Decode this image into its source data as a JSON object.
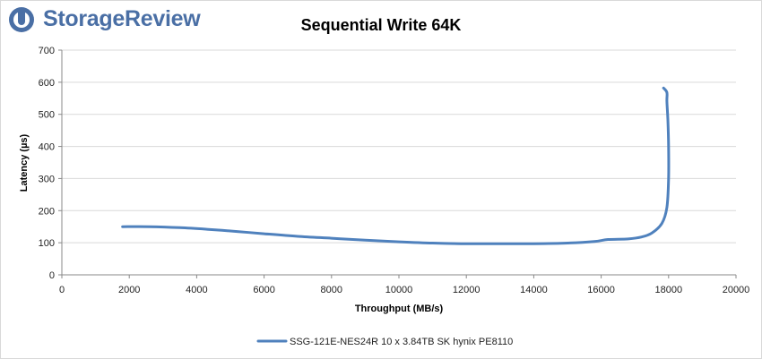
{
  "brand": {
    "name": "StorageReview",
    "color": "#4a6fa5"
  },
  "chart_data": {
    "type": "line",
    "title": "Sequential Write 64K",
    "xlabel": "Throughput (MB/s)",
    "ylabel": "Latency (µs)",
    "xlim": [
      0,
      20000
    ],
    "ylim": [
      0,
      700
    ],
    "xticks": [
      0,
      2000,
      4000,
      6000,
      8000,
      10000,
      12000,
      14000,
      16000,
      18000,
      20000
    ],
    "yticks": [
      0,
      100,
      200,
      300,
      400,
      500,
      600,
      700
    ],
    "grid": "horizontal",
    "legend_position": "bottom",
    "series": [
      {
        "name": "SSG-121E-NES24R 10 x 3.84TB SK hynix PE8110",
        "color": "#4f81bd",
        "points": [
          [
            1800,
            150
          ],
          [
            2600,
            150
          ],
          [
            3500,
            147
          ],
          [
            4300,
            142
          ],
          [
            5200,
            135
          ],
          [
            6000,
            128
          ],
          [
            7000,
            120
          ],
          [
            8000,
            114
          ],
          [
            9000,
            108
          ],
          [
            10000,
            103
          ],
          [
            11000,
            99
          ],
          [
            12000,
            97
          ],
          [
            13000,
            97
          ],
          [
            14000,
            97
          ],
          [
            15000,
            99
          ],
          [
            15800,
            104
          ],
          [
            16200,
            110
          ],
          [
            16800,
            112
          ],
          [
            17200,
            118
          ],
          [
            17500,
            130
          ],
          [
            17800,
            160
          ],
          [
            17950,
            210
          ],
          [
            18000,
            300
          ],
          [
            18000,
            400
          ],
          [
            17980,
            480
          ],
          [
            17950,
            540
          ],
          [
            17950,
            568
          ],
          [
            17850,
            582
          ]
        ]
      }
    ]
  }
}
